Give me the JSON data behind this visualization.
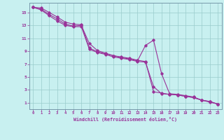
{
  "xlabel": "Windchill (Refroidissement éolien,°C)",
  "bg_color": "#c8f0f0",
  "line_color": "#993399",
  "grid_color": "#99cccc",
  "spine_color": "#7799aa",
  "xlim": [
    -0.5,
    23.5
  ],
  "ylim": [
    0,
    16.5
  ],
  "yticks": [
    1,
    3,
    5,
    7,
    9,
    11,
    13,
    15
  ],
  "xticks": [
    0,
    1,
    2,
    3,
    4,
    5,
    6,
    7,
    8,
    9,
    10,
    11,
    12,
    13,
    14,
    15,
    16,
    17,
    18,
    19,
    20,
    21,
    22,
    23
  ],
  "line1_x": [
    0,
    1,
    2,
    3,
    4,
    5,
    6,
    7,
    8,
    9,
    10,
    11,
    12,
    13,
    14,
    15,
    16,
    17,
    18,
    19,
    20,
    21,
    22,
    23
  ],
  "line1_y": [
    15.8,
    15.7,
    15.0,
    14.3,
    13.5,
    13.2,
    13.1,
    9.5,
    8.9,
    8.6,
    8.3,
    8.1,
    7.9,
    7.6,
    7.4,
    2.7,
    2.5,
    2.3,
    2.2,
    2.0,
    1.8,
    1.4,
    1.2,
    0.8
  ],
  "line2_x": [
    0,
    1,
    2,
    3,
    4,
    5,
    6,
    7,
    8,
    9,
    10,
    11,
    12,
    13,
    14,
    15,
    16,
    17,
    18,
    19,
    20,
    21,
    22,
    23
  ],
  "line2_y": [
    15.8,
    15.5,
    14.7,
    14.0,
    13.2,
    12.9,
    13.0,
    10.2,
    9.1,
    8.7,
    8.3,
    8.0,
    7.8,
    7.5,
    9.9,
    10.7,
    5.5,
    2.4,
    2.3,
    2.1,
    1.9,
    1.4,
    1.2,
    0.8
  ],
  "line3_x": [
    0,
    1,
    2,
    3,
    4,
    5,
    6,
    7,
    8,
    9,
    10,
    11,
    12,
    13,
    14,
    15,
    16,
    17,
    18,
    19,
    20,
    21,
    22,
    23
  ],
  "line3_y": [
    15.8,
    15.4,
    14.5,
    13.7,
    13.0,
    12.8,
    12.8,
    9.3,
    8.8,
    8.5,
    8.1,
    7.9,
    7.7,
    7.4,
    7.3,
    3.5,
    2.4,
    2.3,
    2.2,
    2.0,
    1.8,
    1.4,
    1.1,
    0.8
  ]
}
